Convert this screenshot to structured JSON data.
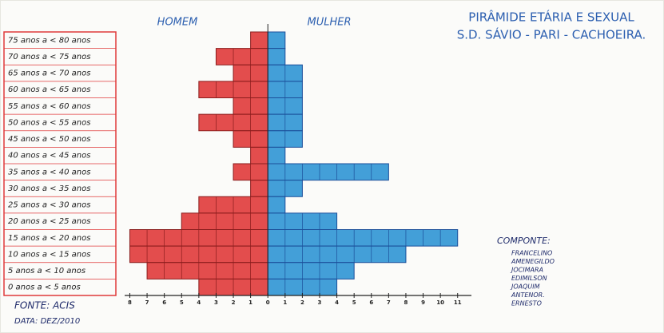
{
  "chart_data": {
    "type": "pyramid",
    "title": "PIRÂMIDE ETÁRIA E SEXUAL",
    "subtitle": "S.D. SÁVIO - PARI - CACHOEIRA.",
    "categories": [
      "75 anos a < 80 anos",
      "70 anos a < 75 anos",
      "65 anos a < 70 anos",
      "60 anos a < 65 anos",
      "55 anos a < 60 anos",
      "50 anos a < 55 anos",
      "45 anos a < 50 anos",
      "40 anos a < 45 anos",
      "35 anos a < 40 anos",
      "30 anos a < 35 anos",
      "25 anos a < 30 anos",
      "20 anos a < 25 anos",
      "15 anos a < 20 anos",
      "10 anos a < 15 anos",
      "5 anos a < 10 anos",
      "0 anos a < 5 anos"
    ],
    "series": [
      {
        "name": "HOMEM",
        "color": "#e03a3a",
        "values": [
          1,
          3,
          2,
          4,
          2,
          4,
          2,
          1,
          2,
          1,
          4,
          5,
          8,
          8,
          7,
          4
        ]
      },
      {
        "name": "MULHER",
        "color": "#2f95d4",
        "values": [
          1,
          1,
          2,
          2,
          2,
          2,
          2,
          1,
          7,
          2,
          1,
          4,
          11,
          8,
          5,
          4
        ]
      }
    ],
    "xlim": [
      -8.3,
      11.8
    ],
    "xticks": [
      {
        "value": -8,
        "label": "8"
      },
      {
        "value": -7,
        "label": "7"
      },
      {
        "value": -6,
        "label": "6"
      },
      {
        "value": -5,
        "label": "5"
      },
      {
        "value": -4,
        "label": "4"
      },
      {
        "value": -3,
        "label": "3"
      },
      {
        "value": -2,
        "label": "2"
      },
      {
        "value": -1,
        "label": "1"
      },
      0,
      1,
      2,
      3,
      4,
      5,
      6,
      7,
      8,
      9,
      10,
      11
    ]
  },
  "source": "FONTE: ACIS",
  "date": "DATA: DEZ/2010",
  "components": {
    "title": "COMPONTE:",
    "names": [
      "FRANCELINO",
      "AMENEGILDO",
      "JOCIMARA",
      "EDIMILSON",
      "JOAQUIM",
      "ANTENOR.",
      "ERNESTO"
    ]
  }
}
